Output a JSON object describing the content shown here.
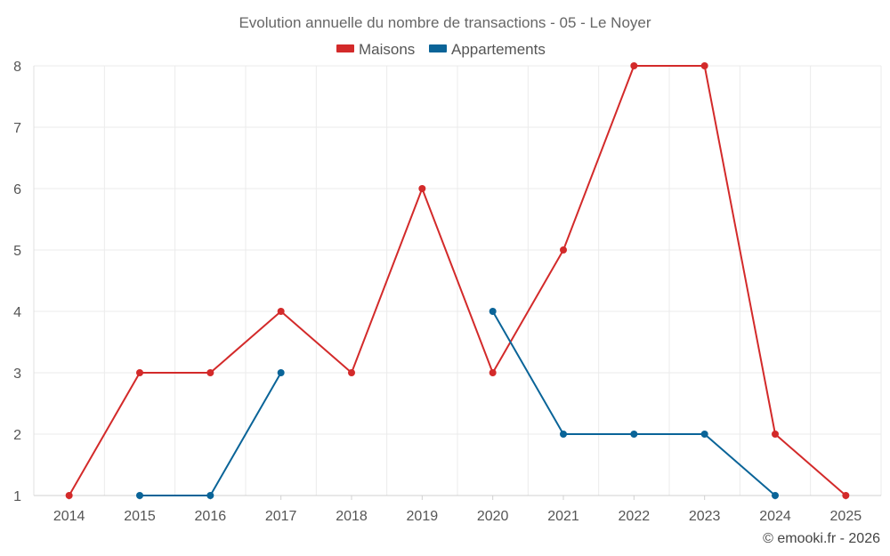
{
  "chart_data": {
    "type": "line",
    "title": "Evolution annuelle du nombre de transactions - 05 - Le Noyer",
    "x": [
      "2014",
      "2015",
      "2016",
      "2017",
      "2018",
      "2019",
      "2020",
      "2021",
      "2022",
      "2023",
      "2024",
      "2025"
    ],
    "ylim": [
      1,
      8
    ],
    "yticks": [
      "1",
      "2",
      "3",
      "4",
      "5",
      "6",
      "7",
      "8"
    ],
    "grid": true,
    "legend_position": "top-center",
    "series": [
      {
        "name": "Maisons",
        "color": "#d32a2a",
        "values": [
          1,
          3,
          3,
          4,
          3,
          6,
          3,
          5,
          8,
          8,
          2,
          1
        ]
      },
      {
        "name": "Appartements",
        "color": "#0a6498",
        "values": [
          null,
          1,
          1,
          3,
          null,
          null,
          4,
          2,
          2,
          2,
          1,
          null
        ]
      }
    ],
    "credit": "© emooki.fr - 2026"
  }
}
